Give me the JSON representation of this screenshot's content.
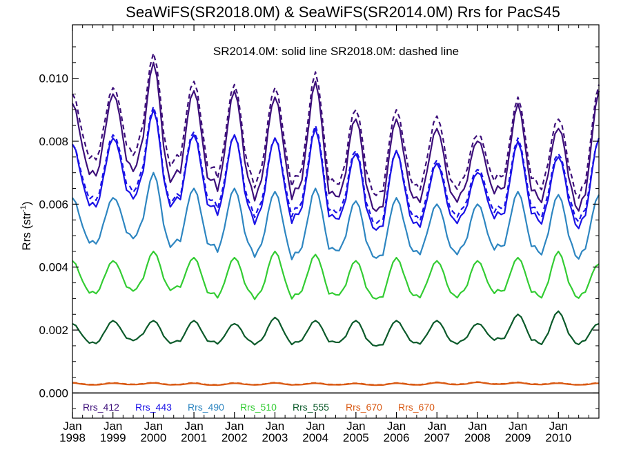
{
  "chart_data": {
    "type": "line",
    "title": "SeaWiFS(SR2018.0M) & SeaWiFS(SR2014.0M)  Rrs for PacS45",
    "annotation": "SR2014.0M: solid line   SR2018.0M: dashed line",
    "ylabel_main": "Rrs (str",
    "ylabel_sup": "-1",
    "ylabel_close": ")",
    "xlim": [
      1998.0,
      2011.0
    ],
    "ylim": [
      -0.0008,
      0.0117
    ],
    "yticks": [
      0.0,
      0.002,
      0.004,
      0.006,
      0.008,
      0.01
    ],
    "ytick_labels": [
      "0.000",
      "0.002",
      "0.004",
      "0.006",
      "0.008",
      "0.010"
    ],
    "xticks": [
      1998,
      1999,
      2000,
      2001,
      2002,
      2003,
      2004,
      2005,
      2006,
      2007,
      2008,
      2009,
      2010
    ],
    "xtick_month": "Jan",
    "xtick_years": [
      "1998",
      "1999",
      "2000",
      "2001",
      "2002",
      "2003",
      "2004",
      "2005",
      "2006",
      "2007",
      "2008",
      "2009",
      "2010"
    ],
    "zero_line": 0.0,
    "series": [
      {
        "name": "Rrs_412",
        "color": "#3d0f7a",
        "style": "solid",
        "peaks": [
          0.0092,
          0.0095,
          0.0105,
          0.0096,
          0.0096,
          0.0094,
          0.0099,
          0.0087,
          0.0087,
          0.0084,
          0.008,
          0.0092,
          0.0084,
          0.0096
        ],
        "troughs": [
          0.007,
          0.0072,
          0.0068,
          0.0066,
          0.0064,
          0.0064,
          0.0062,
          0.0058,
          0.0062,
          0.0062,
          0.0064,
          0.0062,
          0.006
        ]
      },
      {
        "name": "Rrs_412",
        "color": "#3d0f7a",
        "style": "dashed",
        "peaks": [
          0.0095,
          0.0097,
          0.0108,
          0.0099,
          0.0098,
          0.0097,
          0.0102,
          0.009,
          0.009,
          0.0088,
          0.0082,
          0.0094,
          0.0087,
          0.0098
        ],
        "troughs": [
          0.0075,
          0.0077,
          0.0073,
          0.007,
          0.0068,
          0.0068,
          0.0066,
          0.0063,
          0.0066,
          0.0066,
          0.0068,
          0.0066,
          0.0064
        ]
      },
      {
        "name": "Rrs_443",
        "color": "#1a12e6",
        "style": "solid",
        "peaks": [
          0.0079,
          0.0081,
          0.009,
          0.0082,
          0.0082,
          0.0081,
          0.0084,
          0.0076,
          0.0077,
          0.0073,
          0.007,
          0.008,
          0.0075,
          0.0081
        ],
        "troughs": [
          0.006,
          0.0063,
          0.006,
          0.0058,
          0.0056,
          0.0056,
          0.0055,
          0.0052,
          0.0054,
          0.0055,
          0.0056,
          0.0055,
          0.0054
        ]
      },
      {
        "name": "Rrs_443",
        "color": "#1a12e6",
        "style": "dashed",
        "peaks": [
          0.0079,
          0.0082,
          0.0091,
          0.0083,
          0.0082,
          0.0081,
          0.0085,
          0.0077,
          0.0077,
          0.0074,
          0.0071,
          0.0081,
          0.0076,
          0.0081
        ],
        "troughs": [
          0.0062,
          0.0065,
          0.0061,
          0.006,
          0.0058,
          0.0058,
          0.0057,
          0.0054,
          0.0056,
          0.0057,
          0.0058,
          0.0057,
          0.0056
        ]
      },
      {
        "name": "Rrs_490",
        "color": "#2e86c1",
        "style": "solid",
        "peaks": [
          0.0062,
          0.0062,
          0.007,
          0.0065,
          0.0065,
          0.0064,
          0.0065,
          0.0061,
          0.0062,
          0.006,
          0.006,
          0.0064,
          0.0063,
          0.0063
        ],
        "troughs": [
          0.0048,
          0.005,
          0.0047,
          0.0046,
          0.0045,
          0.0044,
          0.0045,
          0.0043,
          0.0045,
          0.0045,
          0.0046,
          0.0045,
          0.0044
        ]
      },
      {
        "name": "Rrs_510",
        "color": "#33cc33",
        "style": "solid",
        "peaks": [
          0.0042,
          0.0042,
          0.0045,
          0.0043,
          0.0043,
          0.0045,
          0.0044,
          0.0042,
          0.0043,
          0.0042,
          0.0042,
          0.0043,
          0.0045,
          0.0041
        ],
        "troughs": [
          0.0032,
          0.0033,
          0.0033,
          0.0031,
          0.0031,
          0.0031,
          0.0031,
          0.003,
          0.0031,
          0.0031,
          0.0032,
          0.0031,
          0.0031
        ]
      },
      {
        "name": "Rrs_555",
        "color": "#0b5a2a",
        "style": "solid",
        "peaks": [
          0.0022,
          0.0023,
          0.0023,
          0.0023,
          0.0022,
          0.0024,
          0.0023,
          0.0023,
          0.0023,
          0.0023,
          0.0022,
          0.0025,
          0.0026,
          0.0022
        ],
        "troughs": [
          0.0016,
          0.0017,
          0.0016,
          0.0016,
          0.0016,
          0.0016,
          0.0016,
          0.0015,
          0.0016,
          0.0016,
          0.0017,
          0.0016,
          0.0016
        ]
      },
      {
        "name": "Rrs_670",
        "color": "#d95a14",
        "style": "solid",
        "peaks": [
          0.00032,
          0.00031,
          0.00032,
          0.00031,
          0.00031,
          0.00032,
          0.00031,
          0.0003,
          0.00031,
          0.00033,
          0.00034,
          0.00033,
          0.00031,
          0.00031
        ],
        "troughs": [
          0.00026,
          0.00027,
          0.00026,
          0.00025,
          0.00026,
          0.00026,
          0.00026,
          0.00025,
          0.00026,
          0.00027,
          0.00028,
          0.00027,
          0.00026
        ]
      },
      {
        "name": "Rrs_670",
        "color": "#d95a14",
        "style": "dashed",
        "peaks": [
          0.00033,
          0.00032,
          0.00033,
          0.00032,
          0.00032,
          0.00033,
          0.00032,
          0.00031,
          0.00032,
          0.00034,
          0.00035,
          0.00034,
          0.00032,
          0.00032
        ],
        "troughs": [
          0.00027,
          0.00028,
          0.00027,
          0.00026,
          0.00027,
          0.00027,
          0.00027,
          0.00026,
          0.00027,
          0.00028,
          0.00029,
          0.00028,
          0.00027
        ]
      }
    ],
    "legend": [
      {
        "label": "Rrs_412",
        "color": "#3d0f7a"
      },
      {
        "label": "Rrs_443",
        "color": "#1a12e6"
      },
      {
        "label": "Rrs_490",
        "color": "#2e86c1"
      },
      {
        "label": "Rrs_510",
        "color": "#33cc33"
      },
      {
        "label": "Rrs_555",
        "color": "#0b5a2a"
      },
      {
        "label": "Rrs_670",
        "color": "#d95a14"
      },
      {
        "label": "Rrs_670",
        "color": "#d95a14"
      }
    ],
    "legend_placement": "bottom-inside",
    "grid": false
  }
}
